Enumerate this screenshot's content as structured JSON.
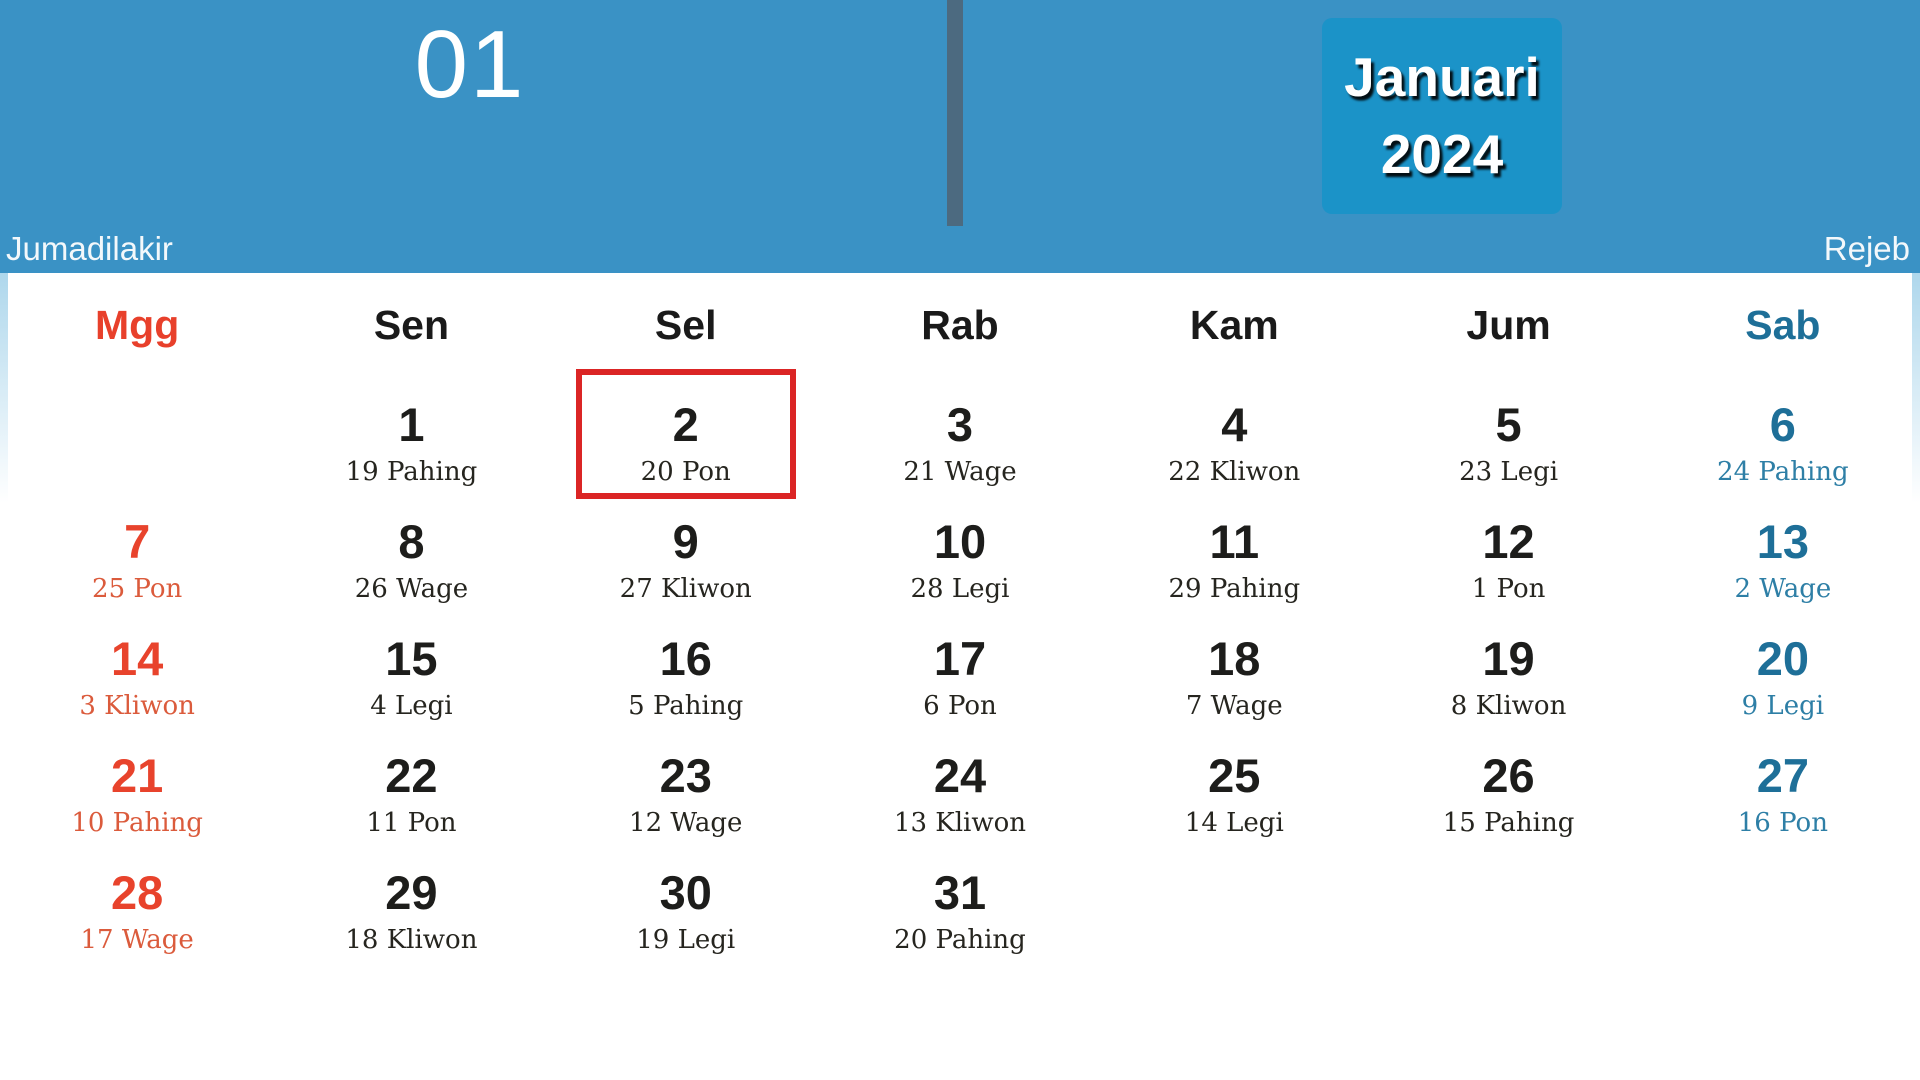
{
  "header": {
    "month_number": "01",
    "month_name": "Januari",
    "year": "2024",
    "javanese_month_left": "Jumadilakir",
    "javanese_month_right": "Rejeb"
  },
  "weekdays": [
    {
      "label": "Mgg",
      "type": "sunday"
    },
    {
      "label": "Sen",
      "type": "normal"
    },
    {
      "label": "Sel",
      "type": "normal"
    },
    {
      "label": "Rab",
      "type": "normal"
    },
    {
      "label": "Kam",
      "type": "normal"
    },
    {
      "label": "Jum",
      "type": "normal"
    },
    {
      "label": "Sab",
      "type": "saturday"
    }
  ],
  "weeks": [
    [
      {
        "day": "",
        "java": ""
      },
      {
        "day": "1",
        "java": "19 Pahing"
      },
      {
        "day": "2",
        "java": "20 Pon",
        "highlighted": true
      },
      {
        "day": "3",
        "java": "21 Wage"
      },
      {
        "day": "4",
        "java": "22 Kliwon"
      },
      {
        "day": "5",
        "java": "23 Legi"
      },
      {
        "day": "6",
        "java": "24 Pahing"
      }
    ],
    [
      {
        "day": "7",
        "java": "25 Pon"
      },
      {
        "day": "8",
        "java": "26 Wage"
      },
      {
        "day": "9",
        "java": "27 Kliwon"
      },
      {
        "day": "10",
        "java": "28 Legi"
      },
      {
        "day": "11",
        "java": "29 Pahing"
      },
      {
        "day": "12",
        "java": "1 Pon"
      },
      {
        "day": "13",
        "java": "2 Wage"
      }
    ],
    [
      {
        "day": "14",
        "java": "3 Kliwon"
      },
      {
        "day": "15",
        "java": "4 Legi"
      },
      {
        "day": "16",
        "java": "5 Pahing"
      },
      {
        "day": "17",
        "java": "6 Pon"
      },
      {
        "day": "18",
        "java": "7 Wage"
      },
      {
        "day": "19",
        "java": "8 Kliwon"
      },
      {
        "day": "20",
        "java": "9 Legi"
      }
    ],
    [
      {
        "day": "21",
        "java": "10 Pahing"
      },
      {
        "day": "22",
        "java": "11 Pon"
      },
      {
        "day": "23",
        "java": "12 Wage"
      },
      {
        "day": "24",
        "java": "13 Kliwon"
      },
      {
        "day": "25",
        "java": "14 Legi"
      },
      {
        "day": "26",
        "java": "15 Pahing"
      },
      {
        "day": "27",
        "java": "16 Pon"
      }
    ],
    [
      {
        "day": "28",
        "java": "17 Wage"
      },
      {
        "day": "29",
        "java": "18 Kliwon"
      },
      {
        "day": "30",
        "java": "19 Legi"
      },
      {
        "day": "31",
        "java": "20 Pahing"
      },
      {
        "day": "",
        "java": ""
      },
      {
        "day": "",
        "java": ""
      },
      {
        "day": "",
        "java": ""
      }
    ]
  ],
  "colors": {
    "header_blue": "#3A92C5",
    "title_box_blue": "#1B93C8",
    "divider_dark": "#4C6A80",
    "sunday_red": "#E8432C",
    "saturday_blue": "#1E6F98",
    "highlight_border_red": "#DB2525"
  }
}
